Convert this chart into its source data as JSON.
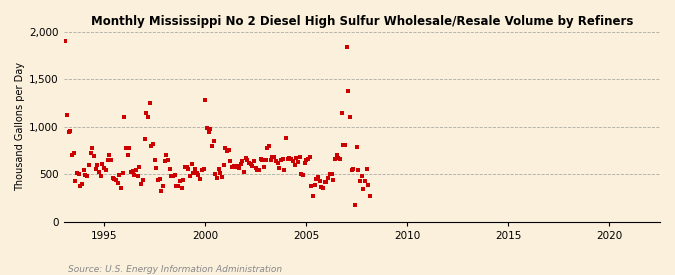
{
  "title": "Monthly Mississippi No 2 Diesel High Sulfur Wholesale/Resale Volume by Refiners",
  "ylabel": "Thousand Gallons per Day",
  "source": "Source: U.S. Energy Information Administration",
  "background_color": "#FAF0DC",
  "scatter_color": "#CC0000",
  "xlim": [
    1993.0,
    2022.5
  ],
  "ylim": [
    0,
    2000
  ],
  "yticks": [
    0,
    500,
    1000,
    1500,
    2000
  ],
  "ytick_labels": [
    "0",
    "500",
    "1,000",
    "1,500",
    "2,000"
  ],
  "xticks": [
    1995,
    2000,
    2005,
    2010,
    2015,
    2020
  ],
  "data_x": [
    1993.08,
    1993.17,
    1993.25,
    1993.33,
    1993.42,
    1993.5,
    1993.58,
    1993.67,
    1993.75,
    1993.83,
    1993.92,
    1994.0,
    1994.08,
    1994.17,
    1994.25,
    1994.33,
    1994.42,
    1994.5,
    1994.58,
    1994.67,
    1994.75,
    1994.83,
    1994.92,
    1995.0,
    1995.08,
    1995.17,
    1995.25,
    1995.33,
    1995.42,
    1995.5,
    1995.58,
    1995.67,
    1995.75,
    1995.83,
    1995.92,
    1996.0,
    1996.08,
    1996.17,
    1996.25,
    1996.33,
    1996.42,
    1996.5,
    1996.58,
    1996.67,
    1996.75,
    1996.83,
    1996.92,
    1997.0,
    1997.08,
    1997.17,
    1997.25,
    1997.33,
    1997.42,
    1997.5,
    1997.58,
    1997.67,
    1997.75,
    1997.83,
    1997.92,
    1998.0,
    1998.08,
    1998.17,
    1998.25,
    1998.33,
    1998.42,
    1998.5,
    1998.58,
    1998.67,
    1998.75,
    1998.83,
    1998.92,
    1999.0,
    1999.08,
    1999.17,
    1999.25,
    1999.33,
    1999.42,
    1999.5,
    1999.58,
    1999.67,
    1999.75,
    1999.83,
    1999.92,
    2000.0,
    2000.08,
    2000.17,
    2000.25,
    2000.33,
    2000.42,
    2000.5,
    2000.58,
    2000.67,
    2000.75,
    2000.83,
    2000.92,
    2001.0,
    2001.08,
    2001.17,
    2001.25,
    2001.33,
    2001.42,
    2001.5,
    2001.58,
    2001.67,
    2001.75,
    2001.83,
    2001.92,
    2002.0,
    2002.08,
    2002.17,
    2002.25,
    2002.33,
    2002.42,
    2002.5,
    2002.58,
    2002.67,
    2002.75,
    2002.83,
    2002.92,
    2003.0,
    2003.08,
    2003.17,
    2003.25,
    2003.33,
    2003.42,
    2003.5,
    2003.58,
    2003.67,
    2003.75,
    2003.83,
    2003.92,
    2004.0,
    2004.08,
    2004.17,
    2004.25,
    2004.33,
    2004.42,
    2004.5,
    2004.58,
    2004.67,
    2004.75,
    2004.83,
    2004.92,
    2005.0,
    2005.08,
    2005.17,
    2005.25,
    2005.33,
    2005.42,
    2005.5,
    2005.58,
    2005.67,
    2005.75,
    2005.83,
    2005.92,
    2006.0,
    2006.08,
    2006.17,
    2006.25,
    2006.33,
    2006.42,
    2006.5,
    2006.58,
    2006.67,
    2006.75,
    2006.83,
    2006.92,
    2007.0,
    2007.08,
    2007.17,
    2007.25,
    2007.33,
    2007.42,
    2007.5,
    2007.58,
    2007.67,
    2007.75,
    2007.83,
    2007.92,
    2008.0,
    2008.08,
    2008.17
  ],
  "data_y": [
    1900,
    1120,
    950,
    960,
    700,
    720,
    430,
    510,
    500,
    380,
    400,
    540,
    490,
    480,
    600,
    720,
    780,
    690,
    560,
    600,
    520,
    480,
    610,
    570,
    550,
    650,
    700,
    650,
    460,
    450,
    440,
    410,
    490,
    360,
    510,
    1100,
    780,
    700,
    780,
    520,
    530,
    490,
    540,
    480,
    580,
    400,
    440,
    870,
    1150,
    1100,
    1250,
    800,
    820,
    650,
    570,
    440,
    450,
    320,
    380,
    640,
    700,
    650,
    560,
    480,
    480,
    490,
    380,
    380,
    430,
    360,
    440,
    580,
    580,
    560,
    480,
    610,
    510,
    560,
    510,
    490,
    450,
    540,
    560,
    1280,
    990,
    950,
    980,
    800,
    850,
    500,
    460,
    560,
    510,
    470,
    600,
    780,
    750,
    760,
    640,
    580,
    590,
    580,
    590,
    570,
    610,
    640,
    520,
    670,
    650,
    620,
    610,
    590,
    640,
    570,
    540,
    540,
    660,
    650,
    580,
    650,
    780,
    800,
    650,
    680,
    680,
    640,
    620,
    570,
    650,
    660,
    540,
    880,
    660,
    670,
    660,
    640,
    600,
    670,
    630,
    680,
    500,
    490,
    620,
    650,
    660,
    680,
    380,
    270,
    390,
    450,
    470,
    430,
    370,
    360,
    420,
    420,
    460,
    500,
    500,
    440,
    660,
    700,
    670,
    660,
    1150,
    810,
    810,
    1840,
    1380,
    1100,
    550,
    560,
    180,
    790,
    540,
    430,
    480,
    340,
    430,
    560,
    390,
    270
  ]
}
